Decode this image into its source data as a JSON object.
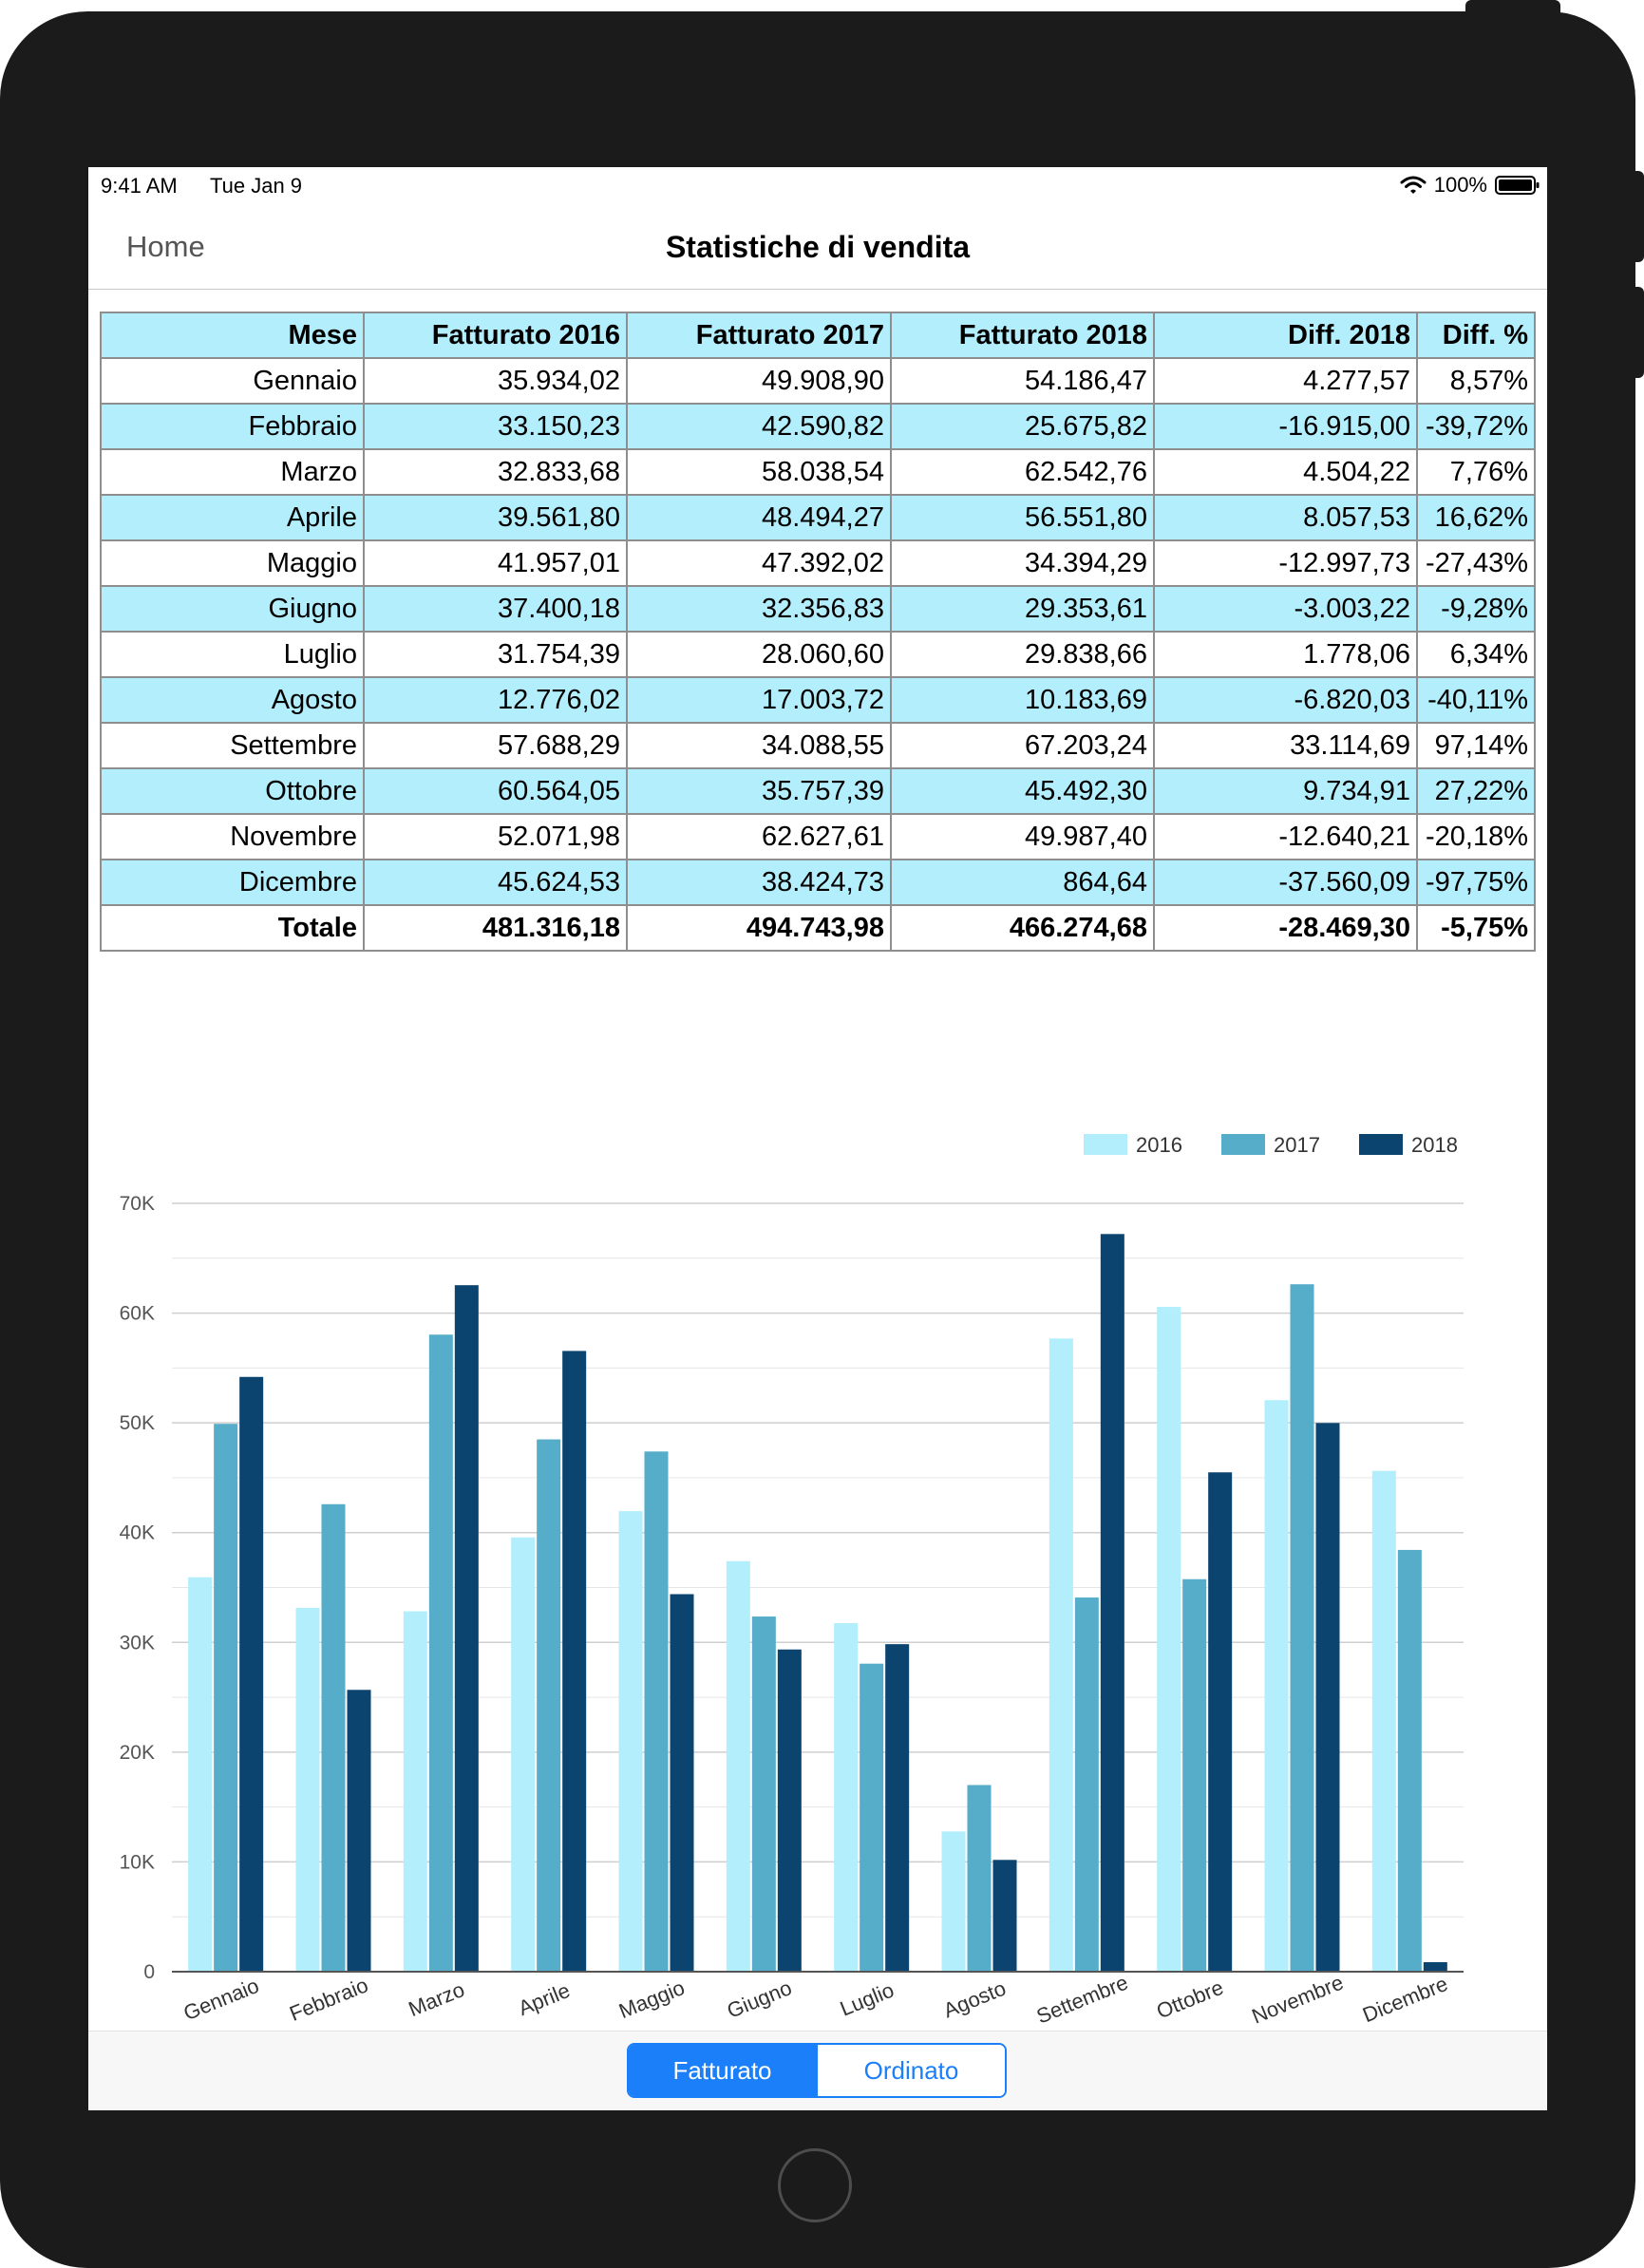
{
  "status_bar": {
    "time": "9:41 AM",
    "date": "Tue Jan 9",
    "battery": "100%"
  },
  "nav": {
    "back_label": "Home",
    "title": "Statistiche di vendita"
  },
  "table": {
    "headers": [
      "Mese",
      "Fatturato 2016",
      "Fatturato 2017",
      "Fatturato 2018",
      "Diff. 2018",
      "Diff. %"
    ],
    "rows": [
      [
        "Gennaio",
        "35.934,02",
        "49.908,90",
        "54.186,47",
        "4.277,57",
        "8,57%"
      ],
      [
        "Febbraio",
        "33.150,23",
        "42.590,82",
        "25.675,82",
        "-16.915,00",
        "-39,72%"
      ],
      [
        "Marzo",
        "32.833,68",
        "58.038,54",
        "62.542,76",
        "4.504,22",
        "7,76%"
      ],
      [
        "Aprile",
        "39.561,80",
        "48.494,27",
        "56.551,80",
        "8.057,53",
        "16,62%"
      ],
      [
        "Maggio",
        "41.957,01",
        "47.392,02",
        "34.394,29",
        "-12.997,73",
        "-27,43%"
      ],
      [
        "Giugno",
        "37.400,18",
        "32.356,83",
        "29.353,61",
        "-3.003,22",
        "-9,28%"
      ],
      [
        "Luglio",
        "31.754,39",
        "28.060,60",
        "29.838,66",
        "1.778,06",
        "6,34%"
      ],
      [
        "Agosto",
        "12.776,02",
        "17.003,72",
        "10.183,69",
        "-6.820,03",
        "-40,11%"
      ],
      [
        "Settembre",
        "57.688,29",
        "34.088,55",
        "67.203,24",
        "33.114,69",
        "97,14%"
      ],
      [
        "Ottobre",
        "60.564,05",
        "35.757,39",
        "45.492,30",
        "9.734,91",
        "27,22%"
      ],
      [
        "Novembre",
        "52.071,98",
        "62.627,61",
        "49.987,40",
        "-12.640,21",
        "-20,18%"
      ],
      [
        "Dicembre",
        "45.624,53",
        "38.424,73",
        "864,64",
        "-37.560,09",
        "-97,75%"
      ]
    ],
    "total": [
      "Totale",
      "481.316,18",
      "494.743,98",
      "466.274,68",
      "-28.469,30",
      "-5,75%"
    ]
  },
  "chart_data": {
    "type": "bar",
    "categories": [
      "Gennaio",
      "Febbraio",
      "Marzo",
      "Aprile",
      "Maggio",
      "Giugno",
      "Luglio",
      "Agosto",
      "Settembre",
      "Ottobre",
      "Novembre",
      "Dicembre"
    ],
    "series": [
      {
        "name": "2016",
        "color": "#b3eefc",
        "values": [
          35934.02,
          33150.23,
          32833.68,
          39561.8,
          41957.01,
          37400.18,
          31754.39,
          12776.02,
          57688.29,
          60564.05,
          52071.98,
          45624.53
        ]
      },
      {
        "name": "2017",
        "color": "#56adca",
        "values": [
          49908.9,
          42590.82,
          58038.54,
          48494.27,
          47392.02,
          32356.83,
          28060.6,
          17003.72,
          34088.55,
          35757.39,
          62627.61,
          38424.73
        ]
      },
      {
        "name": "2018",
        "color": "#0c4470",
        "values": [
          54186.47,
          25675.82,
          62542.76,
          56551.8,
          34394.29,
          29353.61,
          29838.66,
          10183.69,
          67203.24,
          45492.3,
          49987.4,
          864.64
        ]
      }
    ],
    "y_ticks": [
      "0",
      "10K",
      "20K",
      "30K",
      "40K",
      "50K",
      "60K",
      "70K"
    ],
    "ylim": [
      0,
      70000
    ],
    "legend_position": "top-right",
    "grid": true
  },
  "toolbar": {
    "segments": [
      "Fatturato",
      "Ordinato"
    ],
    "selected": "Fatturato"
  }
}
